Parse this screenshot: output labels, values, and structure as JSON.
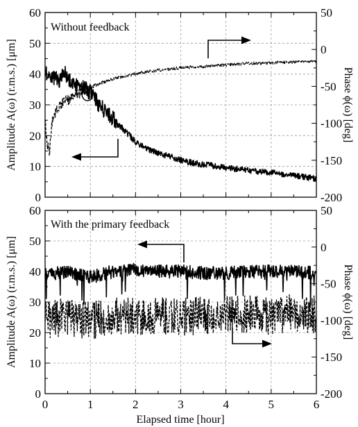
{
  "chart_data": [
    {
      "type": "line",
      "title": "Without feedback",
      "xlabel": "",
      "ylabel": "Amplitude A(ω) (r.m.s.) [μm]",
      "y2label": "Phase ϕ(ω) [deg]",
      "xlim": [
        0,
        6
      ],
      "ylim": [
        0,
        60
      ],
      "y2lim": [
        -200,
        50
      ],
      "xticks": [
        "0",
        "1",
        "2",
        "3",
        "4",
        "5",
        "6"
      ],
      "yticks": [
        "0",
        "10",
        "20",
        "30",
        "40",
        "50",
        "60"
      ],
      "y2ticks": [
        "50",
        "0",
        "-50",
        "-100",
        "-150",
        "-200"
      ],
      "grid": true,
      "series": [
        {
          "style": "solid",
          "axis": "left",
          "x": [
            0,
            0.1,
            0.2,
            0.3,
            0.45,
            0.6,
            0.8,
            1.0,
            1.2,
            1.4,
            1.6,
            1.8,
            2.0,
            2.2,
            2.5,
            2.8,
            3.0,
            3.3,
            3.6,
            4.0,
            4.5,
            5.0,
            5.5,
            6.0
          ],
          "y": [
            41,
            40,
            39,
            38,
            40,
            37,
            36,
            34,
            30,
            27,
            24,
            21,
            18,
            16,
            14.5,
            13,
            12,
            11,
            10.5,
            9.5,
            8.7,
            8,
            7,
            6
          ]
        },
        {
          "style": "dashed",
          "axis": "right",
          "x": [
            0,
            0.05,
            0.1,
            0.15,
            0.25,
            0.4,
            0.6,
            0.8,
            1.0,
            1.2,
            1.5,
            1.8,
            2.0,
            2.5,
            3.0,
            3.5,
            4.0,
            4.5,
            5.0,
            5.5,
            6.0
          ],
          "y": [
            -95,
            -130,
            -140,
            -100,
            -80,
            -72,
            -65,
            -58,
            -52,
            -46,
            -40,
            -36,
            -33,
            -28,
            -25,
            -23,
            -21,
            -19,
            -18,
            -17,
            -16
          ]
        }
      ]
    },
    {
      "type": "line",
      "title": "With the primary feedback",
      "xlabel": "Elapsed time [hour]",
      "ylabel": "Amplitude A(ω) (r.m.s.) [μm]",
      "y2label": "Phase ϕ(ω) [deg]",
      "xlim": [
        0,
        6
      ],
      "ylim": [
        0,
        60
      ],
      "y2lim": [
        -200,
        50
      ],
      "xticks": [
        "0",
        "1",
        "2",
        "3",
        "4",
        "5",
        "6"
      ],
      "yticks": [
        "0",
        "10",
        "20",
        "30",
        "40",
        "50",
        "60"
      ],
      "y2ticks": [
        "50",
        "0",
        "-50",
        "-100",
        "-150",
        "-200"
      ],
      "grid": true,
      "series": [
        {
          "style": "solid",
          "axis": "left",
          "x": [
            0,
            0.5,
            1.0,
            1.5,
            2.0,
            2.5,
            3.0,
            3.5,
            4.0,
            4.5,
            5.0,
            5.5,
            6.0
          ],
          "y": [
            39,
            40,
            38,
            40,
            40.5,
            40,
            40,
            39.5,
            39.5,
            40,
            40,
            40,
            39.5
          ]
        },
        {
          "style": "dashed",
          "axis": "right",
          "x": [
            0,
            0.5,
            1.0,
            1.5,
            2.0,
            2.5,
            3.0,
            3.5,
            4.0,
            4.5,
            5.0,
            5.5,
            6.0
          ],
          "y": [
            -100,
            -95,
            -100,
            -95,
            -95,
            -93,
            -95,
            -93,
            -93,
            -92,
            -95,
            -90,
            -93
          ]
        }
      ]
    }
  ]
}
